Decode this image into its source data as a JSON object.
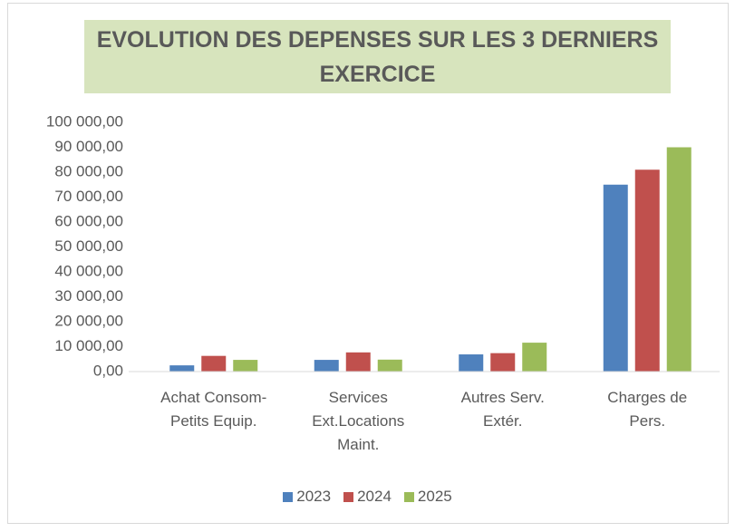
{
  "chart_data": {
    "type": "bar",
    "title": "EVOLUTION DES DEPENSES SUR LES 3 DERNIERS EXERCICE",
    "categories": [
      "Achat Consom-Petits Equip.",
      "Services Ext.Locations Maint.",
      "Autres Serv. Extér.",
      "Charges de Pers."
    ],
    "series": [
      {
        "name": "2023",
        "color": "#4f81bd",
        "values": [
          2500,
          4700,
          6900,
          75000
        ]
      },
      {
        "name": "2024",
        "color": "#c0504d",
        "values": [
          6300,
          7700,
          7400,
          81000
        ]
      },
      {
        "name": "2025",
        "color": "#9bbb59",
        "values": [
          4700,
          4800,
          11600,
          90000
        ]
      }
    ],
    "ylim": [
      0,
      100000
    ],
    "yticks": [
      {
        "value": 0,
        "label": "0,00"
      },
      {
        "value": 10000,
        "label": "10 000,00"
      },
      {
        "value": 20000,
        "label": "20 000,00"
      },
      {
        "value": 30000,
        "label": "30 000,00"
      },
      {
        "value": 40000,
        "label": "40 000,00"
      },
      {
        "value": 50000,
        "label": "50 000,00"
      },
      {
        "value": 60000,
        "label": "60 000,00"
      },
      {
        "value": 70000,
        "label": "70 000,00"
      },
      {
        "value": 80000,
        "label": "80 000,00"
      },
      {
        "value": 90000,
        "label": "90 000,00"
      },
      {
        "value": 100000,
        "label": "100 000,00"
      }
    ],
    "grid": false,
    "legend": "bottom"
  }
}
